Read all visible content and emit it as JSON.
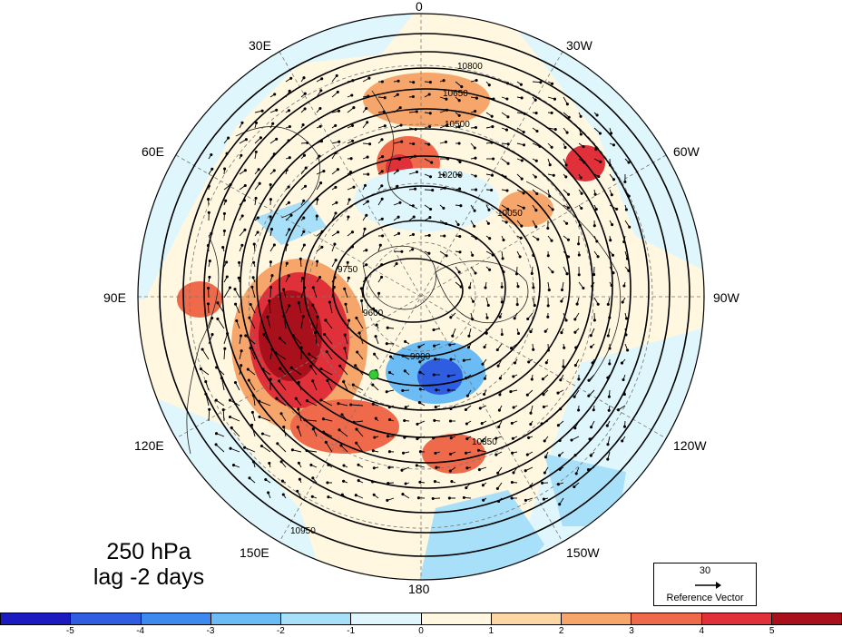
{
  "title": {
    "line1": "250 hPa",
    "line2": "lag -2 days"
  },
  "longitude_labels": {
    "top": "0",
    "bottom": "180",
    "upper_left": "30E",
    "upper_right": "30W",
    "mid_upper_left": "60E",
    "mid_upper_right": "60W",
    "left": "90E",
    "right": "90W",
    "mid_lower_left": "120E",
    "mid_lower_right": "120W",
    "lower_left": "150E",
    "lower_right": "150W"
  },
  "contour_levels": [
    "9600",
    "9750",
    "9900",
    "10050",
    "10200",
    "10350",
    "10500",
    "10650",
    "10800",
    "10950"
  ],
  "reference_vector": {
    "magnitude": "30",
    "caption": "Reference Vector"
  },
  "colorbar": {
    "colors": [
      "#1a1ac0",
      "#2e5de0",
      "#3d89ee",
      "#6bbcf4",
      "#a8e0f9",
      "#def6fc",
      "#fff7e0",
      "#fcd7a4",
      "#f6a66b",
      "#ef6a4b",
      "#e0303a",
      "#a8101c"
    ],
    "tick_labels": [
      "-5",
      "-4",
      "-3",
      "-2",
      "-1",
      "0",
      "1",
      "2",
      "3",
      "4",
      "5"
    ]
  },
  "marker_color": "#33cc33"
}
